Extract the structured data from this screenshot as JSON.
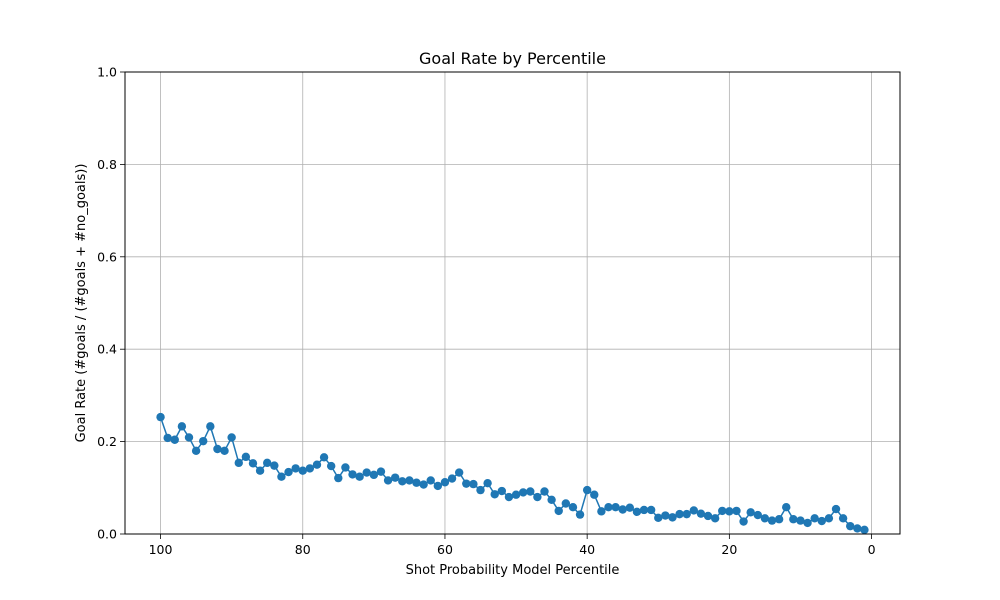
{
  "chart_data": {
    "type": "line",
    "title": "Goal Rate by Percentile",
    "xlabel": "Shot Probability Model Percentile",
    "ylabel": "Goal Rate (#goals / (#goals + #no_goals))",
    "xlim": [
      105,
      -4
    ],
    "ylim": [
      0.0,
      1.0
    ],
    "x_inverted": true,
    "xticks": [
      100,
      80,
      60,
      40,
      20,
      0
    ],
    "xtick_labels": [
      "100",
      "80",
      "60",
      "40",
      "20",
      "0"
    ],
    "yticks": [
      0.0,
      0.2,
      0.4,
      0.6,
      0.8,
      1.0
    ],
    "ytick_labels": [
      "0.0",
      "0.2",
      "0.4",
      "0.6",
      "0.8",
      "1.0"
    ],
    "grid": true,
    "marker": "circle",
    "color": "#1f77b4",
    "series": [
      {
        "x": [
          100,
          99,
          98,
          97,
          96,
          95,
          94,
          93,
          92,
          91,
          90,
          89,
          88,
          87,
          86,
          85,
          84,
          83,
          82,
          81,
          80,
          79,
          78,
          77,
          76,
          75,
          74,
          73,
          72,
          71,
          70,
          69,
          68,
          67,
          66,
          65,
          64,
          63,
          62,
          61,
          60,
          59,
          58,
          57,
          56,
          55,
          54,
          53,
          52,
          51,
          50,
          49,
          48,
          47,
          46,
          45,
          44,
          43,
          42,
          41,
          40,
          39,
          38,
          37,
          36,
          35,
          34,
          33,
          32,
          31,
          30,
          29,
          28,
          27,
          26,
          25,
          24,
          23,
          22,
          21,
          20,
          19,
          18,
          17,
          16,
          15,
          14,
          13,
          12,
          11,
          10,
          9,
          8,
          7,
          6,
          5,
          4,
          3,
          2,
          1
        ],
        "y": [
          0.253,
          0.208,
          0.204,
          0.233,
          0.209,
          0.18,
          0.201,
          0.233,
          0.184,
          0.18,
          0.209,
          0.154,
          0.167,
          0.153,
          0.137,
          0.154,
          0.148,
          0.124,
          0.134,
          0.142,
          0.137,
          0.142,
          0.15,
          0.166,
          0.147,
          0.121,
          0.144,
          0.129,
          0.124,
          0.133,
          0.128,
          0.135,
          0.116,
          0.122,
          0.114,
          0.116,
          0.111,
          0.107,
          0.116,
          0.104,
          0.112,
          0.12,
          0.133,
          0.109,
          0.108,
          0.095,
          0.11,
          0.086,
          0.093,
          0.08,
          0.085,
          0.09,
          0.092,
          0.08,
          0.092,
          0.074,
          0.05,
          0.066,
          0.058,
          0.042,
          0.095,
          0.085,
          0.049,
          0.058,
          0.058,
          0.053,
          0.057,
          0.048,
          0.052,
          0.052,
          0.035,
          0.04,
          0.036,
          0.043,
          0.043,
          0.051,
          0.044,
          0.039,
          0.034,
          0.05,
          0.049,
          0.05,
          0.027,
          0.047,
          0.041,
          0.034,
          0.029,
          0.032,
          0.058,
          0.032,
          0.029,
          0.024,
          0.034,
          0.028,
          0.034,
          0.054,
          0.034,
          0.017,
          0.012,
          0.009
        ]
      }
    ]
  }
}
